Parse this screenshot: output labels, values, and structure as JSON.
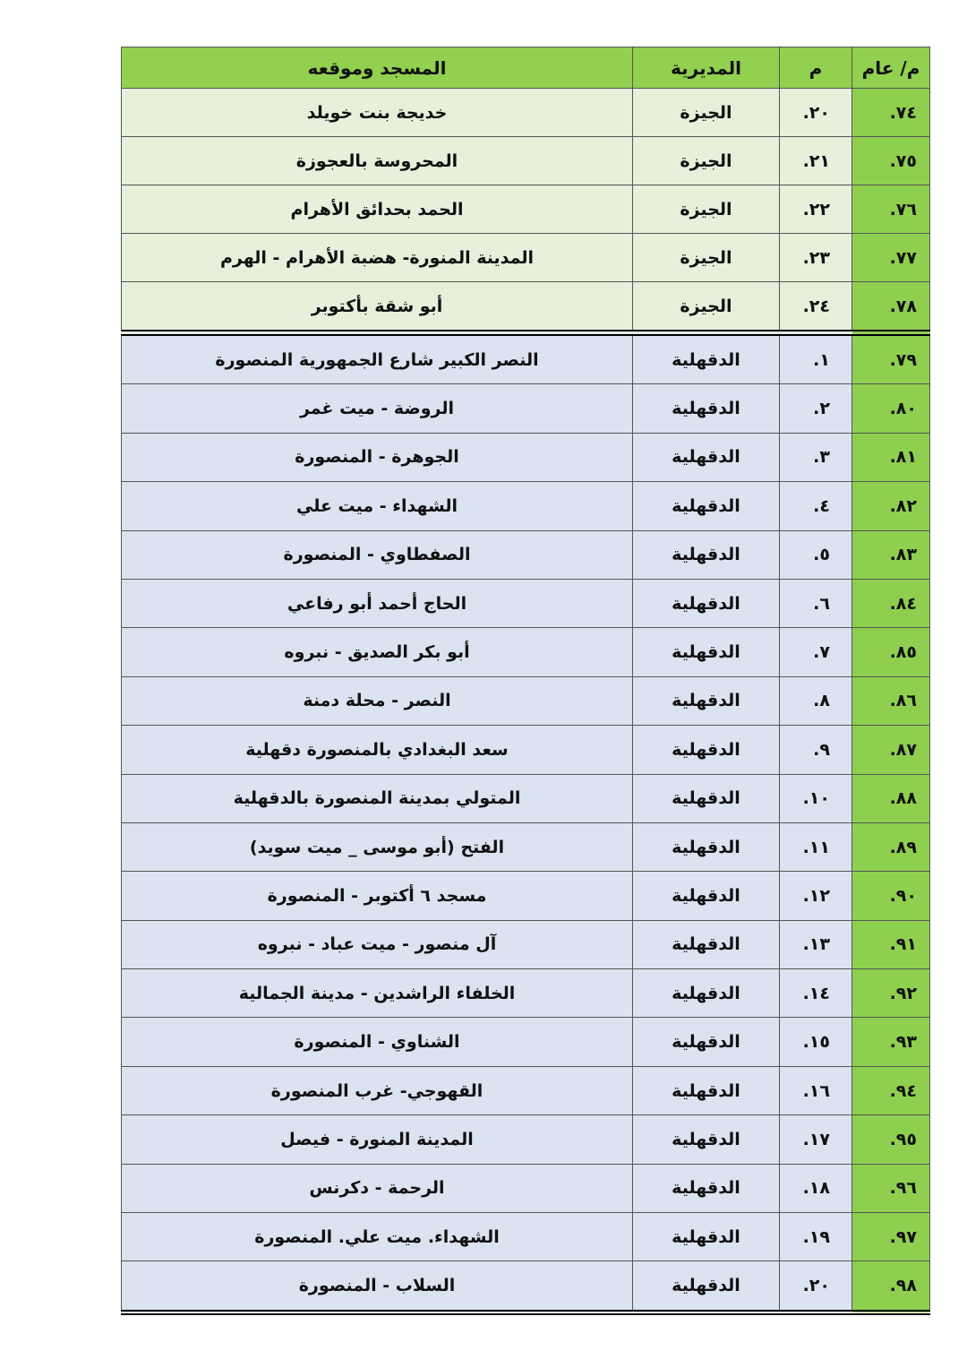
{
  "headers": {
    "general": "م/ عام",
    "m": "م",
    "directorate": "المديرية",
    "mosque": "المسجد وموقعه"
  },
  "colors": {
    "header": "#92d050",
    "general_col": "#8fcf4f",
    "giza_rows": "#e6f0db",
    "dakahlia_rows": "#dbe2f0"
  },
  "rows": [
    {
      "general": "٧٤.",
      "m": "٢٠.",
      "directorate": "الجيزة",
      "mosque": "خديجة بنت خويلد",
      "group": "giza"
    },
    {
      "general": "٧٥.",
      "m": "٢١.",
      "directorate": "الجيزة",
      "mosque": "المحروسة بالعجوزة",
      "group": "giza"
    },
    {
      "general": "٧٦.",
      "m": "٢٢.",
      "directorate": "الجيزة",
      "mosque": "الحمد بحدائق الأهرام",
      "group": "giza"
    },
    {
      "general": "٧٧.",
      "m": "٢٣.",
      "directorate": "الجيزة",
      "mosque": "المدينة المنورة- هضبة الأهرام - الهرم",
      "group": "giza"
    },
    {
      "general": "٧٨.",
      "m": "٢٤.",
      "directorate": "الجيزة",
      "mosque": "أبو شقة بأكتوبر",
      "group": "giza"
    },
    {
      "general": "٧٩.",
      "m": "١.",
      "directorate": "الدقهلية",
      "mosque": "النصر الكبير شارع الجمهورية المنصورة",
      "group": "dak"
    },
    {
      "general": "٨٠.",
      "m": "٢.",
      "directorate": "الدقهلية",
      "mosque": "الروضة -  ميت غمر",
      "group": "dak"
    },
    {
      "general": "٨١.",
      "m": "٣.",
      "directorate": "الدقهلية",
      "mosque": "الجوهرة  - المنصورة",
      "group": "dak"
    },
    {
      "general": "٨٢.",
      "m": "٤.",
      "directorate": "الدقهلية",
      "mosque": "الشهداء - ميت علي",
      "group": "dak"
    },
    {
      "general": "٨٣.",
      "m": "٥.",
      "directorate": "الدقهلية",
      "mosque": "الصفطاوي - المنصورة",
      "group": "dak"
    },
    {
      "general": "٨٤.",
      "m": "٦.",
      "directorate": "الدقهلية",
      "mosque": "الحاج أحمد أبو رفاعي",
      "group": "dak"
    },
    {
      "general": "٨٥.",
      "m": "٧.",
      "directorate": "الدقهلية",
      "mosque": "أبو بكر الصديق - نبروه",
      "group": "dak"
    },
    {
      "general": "٨٦.",
      "m": "٨.",
      "directorate": "الدقهلية",
      "mosque": "النصر - محلة دمنة",
      "group": "dak"
    },
    {
      "general": "٨٧.",
      "m": "٩.",
      "directorate": "الدقهلية",
      "mosque": "سعد البغدادي بالمنصورة دقهلية",
      "group": "dak"
    },
    {
      "general": "٨٨.",
      "m": "١٠.",
      "directorate": "الدقهلية",
      "mosque": "المتولي بمدينة المنصورة بالدقهلية",
      "group": "dak"
    },
    {
      "general": "٨٩.",
      "m": "١١.",
      "directorate": "الدقهلية",
      "mosque": "الفتح (أبو موسى _ ميت سويد)",
      "group": "dak"
    },
    {
      "general": "٩٠.",
      "m": "١٢.",
      "directorate": "الدقهلية",
      "mosque": "مسجد ٦ أكتوبر - المنصورة",
      "group": "dak"
    },
    {
      "general": "٩١.",
      "m": "١٣.",
      "directorate": "الدقهلية",
      "mosque": "آل منصور - ميت عباد - نبروه",
      "group": "dak"
    },
    {
      "general": "٩٢.",
      "m": "١٤.",
      "directorate": "الدقهلية",
      "mosque": "الخلفاء الراشدين  - مدينة الجمالية",
      "group": "dak"
    },
    {
      "general": "٩٣.",
      "m": "١٥.",
      "directorate": "الدقهلية",
      "mosque": "الشناوي - المنصورة",
      "group": "dak"
    },
    {
      "general": "٩٤.",
      "m": "١٦.",
      "directorate": "الدقهلية",
      "mosque": "القهوجي- غرب المنصورة",
      "group": "dak"
    },
    {
      "general": "٩٥.",
      "m": "١٧.",
      "directorate": "الدقهلية",
      "mosque": "المدينة المنورة - فيصل",
      "group": "dak"
    },
    {
      "general": "٩٦.",
      "m": "١٨.",
      "directorate": "الدقهلية",
      "mosque": "الرحمة - دكرنس",
      "group": "dak"
    },
    {
      "general": "٩٧.",
      "m": "١٩.",
      "directorate": "الدقهلية",
      "mosque": "الشهداء. ميت علي. المنصورة",
      "group": "dak"
    },
    {
      "general": "٩٨.",
      "m": "٢٠.",
      "directorate": "الدقهلية",
      "mosque": "السلاب - المنصورة",
      "group": "dak"
    }
  ]
}
